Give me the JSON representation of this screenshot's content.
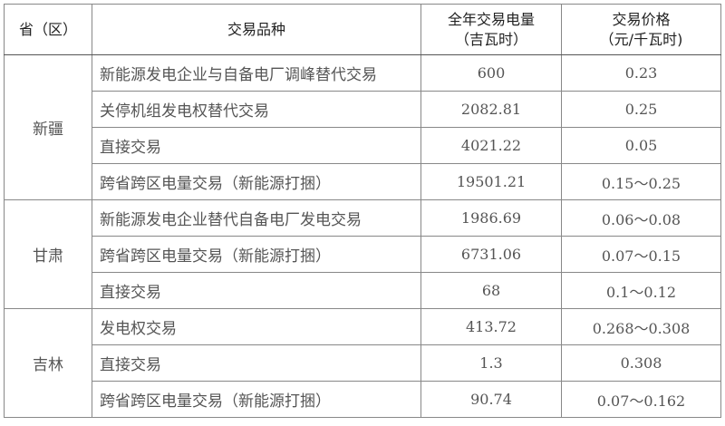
{
  "headers": [
    "省（区）",
    "交易品种",
    "全年交易电量\n（吉瓦时）",
    "交易价格\n（元/千瓦时)"
  ],
  "header_lines": {
    "province": "省（区）",
    "type": "交易品种",
    "volume_1": "全年交易电量",
    "volume_2": "（吉瓦时）",
    "price_1": "交易价格",
    "price_2": "（元/千瓦时)"
  },
  "groups": [
    {
      "province": "新疆",
      "rows": [
        {
          "type": "新能源发电企业与自备电厂调峰替代交易",
          "volume": "600",
          "price": "0.23"
        },
        {
          "type": "关停机组发电权替代交易",
          "volume": "2082.81",
          "price": "0.25"
        },
        {
          "type": "直接交易",
          "volume": "4021.22",
          "price": "0.05"
        },
        {
          "type": "跨省跨区电量交易（新能源打捆）",
          "volume": "19501.21",
          "price": "0.15～0.25"
        }
      ]
    },
    {
      "province": "甘肃",
      "rows": [
        {
          "type": "新能源发电企业替代自备电厂发电交易",
          "volume": "1986.69",
          "price": "0.06～0.08"
        },
        {
          "type": "跨省跨区电量交易（新能源打捆）",
          "volume": "6731.06",
          "price": "0.07～0.15"
        },
        {
          "type": "直接交易",
          "volume": "68",
          "price": "0.1～0.12"
        }
      ]
    },
    {
      "province": "吉林",
      "rows": [
        {
          "type": "发电权交易",
          "volume": "413.72",
          "price": "0.268～0.308"
        },
        {
          "type": "直接交易",
          "volume": "1.3",
          "price": "0.308"
        },
        {
          "type": "跨省跨区电量交易（新能源打捆）",
          "volume": "90.74",
          "price": "0.07～0.162"
        }
      ]
    }
  ]
}
